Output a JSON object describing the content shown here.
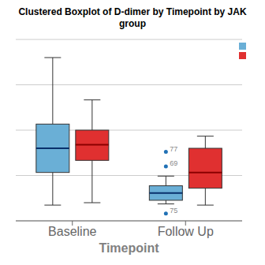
{
  "chart_data": {
    "type": "box",
    "title": "Clustered Boxplot of D-dimer by Timepoint by JAK group",
    "x_label": "Timepoint",
    "categories": [
      "Baseline",
      "Follow Up"
    ],
    "series": [
      {
        "color": "#6aafd6",
        "median_color": "#08306b",
        "boxes": [
          {
            "q1": 3.5,
            "median": 5.5,
            "q3": 7.5,
            "whislo": 0.8,
            "whishi": 13.0,
            "outliers": []
          },
          {
            "q1": 1.2,
            "median": 1.8,
            "q3": 2.4,
            "whislo": 0.9,
            "whishi": 3.2,
            "outliers": [
              {
                "y": 5.2,
                "label": "77"
              },
              {
                "y": 4.0,
                "label": "69"
              },
              {
                "y": 0.1,
                "label": "75"
              }
            ]
          }
        ]
      },
      {
        "color": "#e03030",
        "median_color": "#8b0000",
        "boxes": [
          {
            "q1": 4.5,
            "median": 5.8,
            "q3": 7.0,
            "whislo": 1.0,
            "whishi": 9.5,
            "outliers": []
          },
          {
            "q1": 2.2,
            "median": 3.5,
            "q3": 5.5,
            "whislo": 0.8,
            "whishi": 6.5,
            "outliers": []
          }
        ]
      }
    ],
    "outlier_color": "#2171b5",
    "outlier_label_color": "#888888",
    "ylim": [
      -0.5,
      14.5
    ],
    "yticks": [
      -0.5,
      3.25,
      7,
      10.75,
      14.5
    ],
    "grid": true,
    "tick_labels": "x",
    "legend": "upper right"
  }
}
